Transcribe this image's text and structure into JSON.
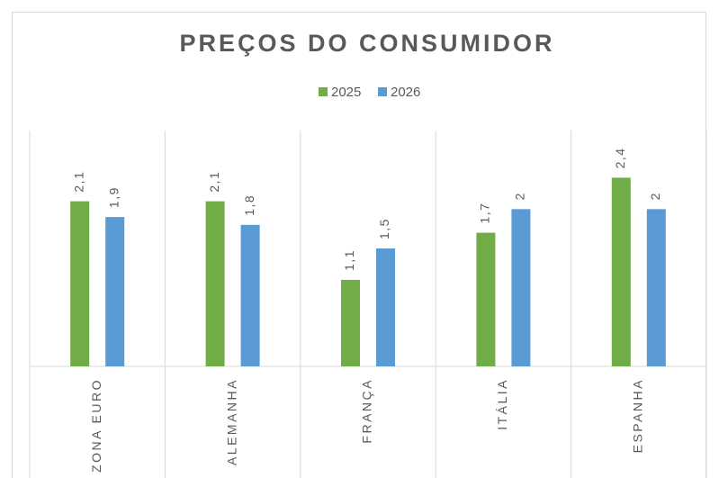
{
  "chart_data": {
    "type": "bar",
    "title": "PREÇOS DO CONSUMIDOR",
    "categories": [
      "ZONA EURO",
      "ALEMANHA",
      "FRANÇA",
      "ITÁLIA",
      "ESPANHA"
    ],
    "series": [
      {
        "name": "2025",
        "color": "#70ad47",
        "values": [
          2.1,
          2.1,
          1.1,
          1.7,
          2.4
        ],
        "value_labels": [
          "2,1",
          "2,1",
          "1,1",
          "1,7",
          "2,4"
        ]
      },
      {
        "name": "2026",
        "color": "#5b9bd5",
        "values": [
          1.9,
          1.8,
          1.5,
          2,
          2
        ],
        "value_labels": [
          "1,9",
          "1,8",
          "1,5",
          "2",
          "2"
        ]
      }
    ],
    "ylim": [
      0,
      3
    ],
    "legend": "top"
  }
}
